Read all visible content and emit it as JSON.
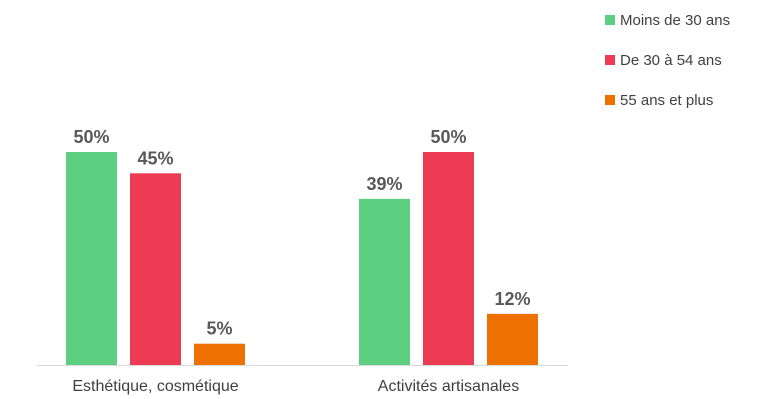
{
  "chart_data": {
    "type": "bar",
    "categories": [
      "Esthétique, cosmétique",
      "Activités artisanales"
    ],
    "series": [
      {
        "name": "Moins de 30 ans",
        "color": "#5dcf80",
        "values": [
          50,
          39
        ],
        "labels": [
          "50%",
          "39%"
        ]
      },
      {
        "name": "De 30 à 54 ans",
        "color": "#ee3b54",
        "values": [
          45,
          50
        ],
        "labels": [
          "45%",
          "50%"
        ]
      },
      {
        "name": "55 ans et plus",
        "color": "#ee7000",
        "values": [
          5,
          12
        ],
        "labels": [
          "5%",
          "12%"
        ]
      }
    ],
    "ylim": [
      0,
      50
    ],
    "grid": false,
    "legend_position": "top-right"
  }
}
